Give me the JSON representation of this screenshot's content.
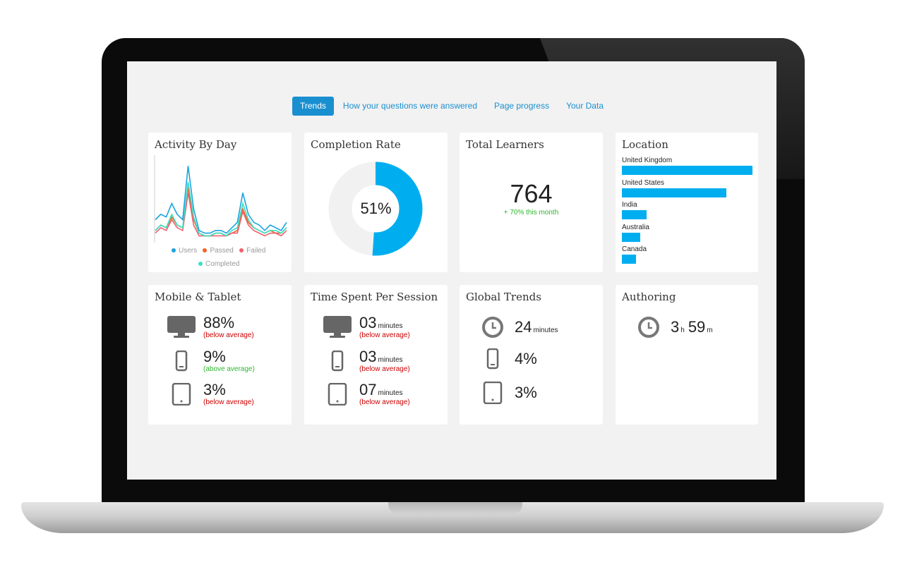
{
  "tabs": [
    {
      "label": "Trends",
      "active": true
    },
    {
      "label": "How your questions were answered",
      "active": false
    },
    {
      "label": "Page progress",
      "active": false
    },
    {
      "label": "Your Data",
      "active": false
    }
  ],
  "activity": {
    "title": "Activity By Day",
    "legend": [
      {
        "label": "Users",
        "color": "#1ba3e0"
      },
      {
        "label": "Passed",
        "color": "#f26522"
      },
      {
        "label": "Failed",
        "color": "#f06070"
      },
      {
        "label": "Completed",
        "color": "#36e2c2"
      }
    ],
    "chart_data": {
      "type": "line",
      "title": "Activity By Day",
      "series": [
        {
          "name": "Users",
          "values": [
            8,
            10,
            9,
            14,
            10,
            8,
            28,
            12,
            4,
            3,
            3,
            4,
            4,
            3,
            5,
            7,
            18,
            10,
            7,
            6,
            4,
            6,
            5,
            4,
            7
          ]
        },
        {
          "name": "Passed",
          "values": [
            4,
            6,
            5,
            9,
            6,
            5,
            20,
            8,
            3,
            2,
            2,
            3,
            3,
            2,
            3,
            4,
            12,
            7,
            5,
            4,
            3,
            4,
            3,
            3,
            5
          ]
        },
        {
          "name": "Failed",
          "values": [
            3,
            5,
            4,
            8,
            5,
            4,
            18,
            6,
            2,
            2,
            2,
            2,
            2,
            2,
            3,
            3,
            11,
            6,
            4,
            3,
            2,
            3,
            3,
            2,
            4
          ]
        },
        {
          "name": "Completed",
          "values": [
            4,
            6,
            5,
            10,
            6,
            5,
            22,
            9,
            3,
            2,
            2,
            3,
            3,
            2,
            4,
            5,
            14,
            8,
            5,
            4,
            3,
            4,
            4,
            3,
            5
          ]
        }
      ],
      "ylim": [
        0,
        32
      ]
    }
  },
  "completion": {
    "title": "Completion Rate",
    "label": "51%",
    "value": 51,
    "color": "#00aeef"
  },
  "learners": {
    "title": "Total Learners",
    "count": "764",
    "trend": "+ 70% this month"
  },
  "location": {
    "title": "Location",
    "chart_data": {
      "type": "bar",
      "categories": [
        "United Kingdom",
        "United States",
        "India",
        "Australia",
        "Canada"
      ],
      "values": [
        100,
        80,
        19,
        14,
        11
      ]
    }
  },
  "mobile": {
    "title": "Mobile & Tablet",
    "rows": [
      {
        "icon": "desktop-icon",
        "value": "88%",
        "note": "(below average)",
        "note_color": "red"
      },
      {
        "icon": "phone-icon",
        "value": "9%",
        "note": "(above average)",
        "note_color": "green"
      },
      {
        "icon": "tablet-icon",
        "value": "3%",
        "note": "(below average)",
        "note_color": "red"
      }
    ]
  },
  "time": {
    "title": "Time Spent Per Session",
    "rows": [
      {
        "icon": "desktop-icon",
        "value": "03",
        "unit": "minutes",
        "note": "(below average)"
      },
      {
        "icon": "phone-icon",
        "value": "03",
        "unit": "minutes",
        "note": "(below average)"
      },
      {
        "icon": "tablet-icon",
        "value": "07",
        "unit": "minutes",
        "note": "(below average)"
      }
    ]
  },
  "global": {
    "title": "Global Trends",
    "rows": [
      {
        "icon": "clock-icon",
        "value": "24",
        "unit": "minutes"
      },
      {
        "icon": "phone-icon",
        "value": "4%"
      },
      {
        "icon": "tablet-icon",
        "value": "3%"
      }
    ]
  },
  "authoring": {
    "title": "Authoring",
    "icon": "clock-icon",
    "hours": "3",
    "hours_unit": "h",
    "minutes": "59",
    "minutes_unit": "m"
  }
}
